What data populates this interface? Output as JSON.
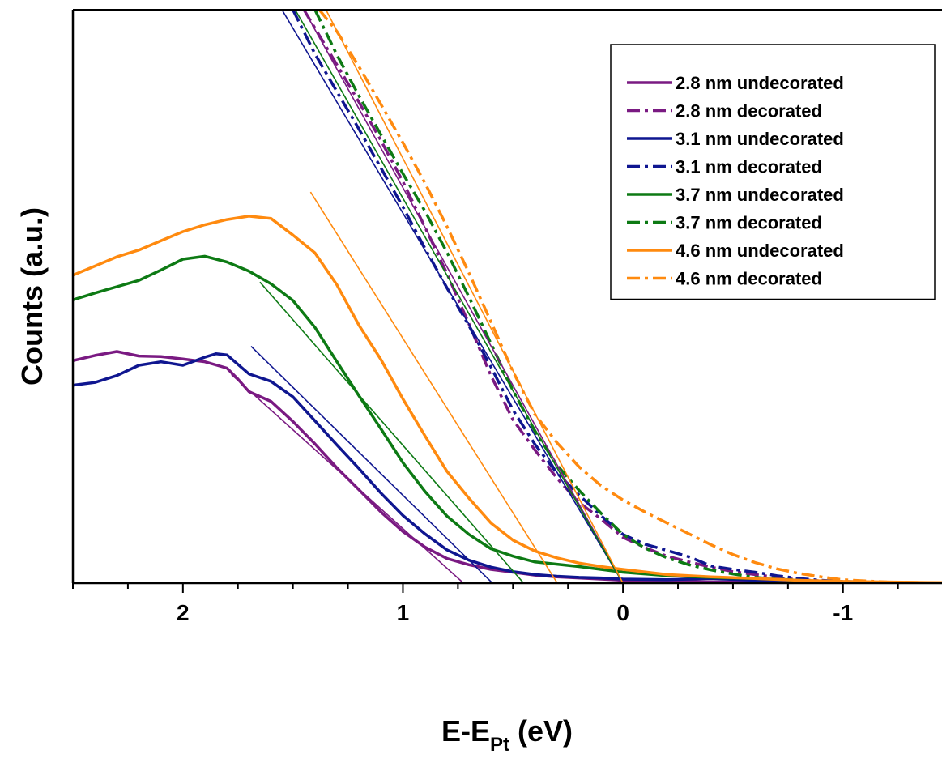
{
  "chart_data": {
    "type": "line",
    "xlabel": {
      "main": "E-E",
      "sub": "Pt",
      "unit": " (eV)"
    },
    "ylabel": "Counts (a.u.)",
    "xlim": [
      2.5,
      -1.45
    ],
    "ylim": [
      0,
      100
    ],
    "x_reversed": true,
    "xticks": [
      2,
      1,
      0,
      -1
    ],
    "xtick_labels": [
      "2",
      "1",
      "0",
      "-1"
    ],
    "y_tick_labels": false,
    "grid": false,
    "legend": {
      "position": "top-right",
      "frame": true
    },
    "colors": {
      "purple": "#7a1a82",
      "blue": "#0f1690",
      "green": "#0d7a14",
      "orange": "#ff8a0f"
    },
    "series": [
      {
        "name": "2.8 nm undecorated",
        "color": "#7a1a82",
        "style": "solid",
        "legend": true,
        "points": [
          [
            2.5,
            38.8
          ],
          [
            2.4,
            39.7
          ],
          [
            2.3,
            40.4
          ],
          [
            2.2,
            39.6
          ],
          [
            2.1,
            39.5
          ],
          [
            2.0,
            39.1
          ],
          [
            1.9,
            38.6
          ],
          [
            1.8,
            37.5
          ],
          [
            1.75,
            35.6
          ],
          [
            1.7,
            33.4
          ],
          [
            1.6,
            31.7
          ],
          [
            1.5,
            28.2
          ],
          [
            1.4,
            24.3
          ],
          [
            1.3,
            20.1
          ],
          [
            1.2,
            16.3
          ],
          [
            1.1,
            12.4
          ],
          [
            1.0,
            9.0
          ],
          [
            0.9,
            6.3
          ],
          [
            0.8,
            4.3
          ],
          [
            0.7,
            3.2
          ],
          [
            0.6,
            2.4
          ],
          [
            0.5,
            1.9
          ],
          [
            0.4,
            1.4
          ],
          [
            0.3,
            1.1
          ],
          [
            0.2,
            0.9
          ],
          [
            0.1,
            0.7
          ],
          [
            0.0,
            0.5
          ],
          [
            -0.2,
            0.3
          ],
          [
            -0.5,
            0.2
          ],
          [
            -1.0,
            0.1
          ],
          [
            -1.45,
            0.05
          ]
        ]
      },
      {
        "name": "2.8 nm decorated",
        "color": "#7a1a82",
        "style": "dashdot",
        "legend": true,
        "points": [
          [
            1.45,
            100
          ],
          [
            1.4,
            96.8
          ],
          [
            1.3,
            90.4
          ],
          [
            1.2,
            83.9
          ],
          [
            1.1,
            77.2
          ],
          [
            1.0,
            70.0
          ],
          [
            0.9,
            62.1
          ],
          [
            0.8,
            54.0
          ],
          [
            0.7,
            45.2
          ],
          [
            0.6,
            36.2
          ],
          [
            0.5,
            28.5
          ],
          [
            0.4,
            23.2
          ],
          [
            0.3,
            18.3
          ],
          [
            0.2,
            14.1
          ],
          [
            0.1,
            11.2
          ],
          [
            0.0,
            8.0
          ],
          [
            -0.1,
            6.2
          ],
          [
            -0.2,
            4.7
          ],
          [
            -0.3,
            3.7
          ],
          [
            -0.4,
            2.8
          ],
          [
            -0.5,
            2.0
          ],
          [
            -0.6,
            1.5
          ],
          [
            -0.7,
            1.0
          ],
          [
            -0.8,
            0.6
          ],
          [
            -0.9,
            0.4
          ],
          [
            -1.0,
            0.2
          ],
          [
            -1.2,
            0.1
          ],
          [
            -1.45,
            0.05
          ]
        ]
      },
      {
        "name": "3.1 nm undecorated",
        "color": "#0f1690",
        "style": "solid",
        "legend": true,
        "points": [
          [
            2.5,
            34.5
          ],
          [
            2.4,
            35.0
          ],
          [
            2.3,
            36.2
          ],
          [
            2.2,
            38.0
          ],
          [
            2.1,
            38.6
          ],
          [
            2.0,
            38.0
          ],
          [
            1.9,
            39.4
          ],
          [
            1.85,
            40.0
          ],
          [
            1.8,
            39.8
          ],
          [
            1.7,
            36.5
          ],
          [
            1.6,
            35.2
          ],
          [
            1.5,
            32.5
          ],
          [
            1.4,
            28.3
          ],
          [
            1.3,
            24.1
          ],
          [
            1.2,
            20.0
          ],
          [
            1.1,
            15.7
          ],
          [
            1.0,
            11.8
          ],
          [
            0.9,
            8.6
          ],
          [
            0.8,
            5.8
          ],
          [
            0.7,
            4.0
          ],
          [
            0.6,
            2.8
          ],
          [
            0.5,
            2.0
          ],
          [
            0.4,
            1.5
          ],
          [
            0.3,
            1.2
          ],
          [
            0.2,
            1.0
          ],
          [
            0.1,
            0.9
          ],
          [
            0.0,
            0.7
          ],
          [
            -0.2,
            0.6
          ],
          [
            -0.4,
            0.8
          ],
          [
            -0.6,
            0.5
          ],
          [
            -0.8,
            0.3
          ],
          [
            -1.0,
            0.2
          ],
          [
            -1.45,
            0.05
          ]
        ]
      },
      {
        "name": "3.1 nm decorated",
        "color": "#0f1690",
        "style": "dashdot",
        "legend": true,
        "points": [
          [
            1.5,
            100
          ],
          [
            1.4,
            92.3
          ],
          [
            1.3,
            85.7
          ],
          [
            1.2,
            79.2
          ],
          [
            1.1,
            72.4
          ],
          [
            1.0,
            65.6
          ],
          [
            0.9,
            58.4
          ],
          [
            0.8,
            51.5
          ],
          [
            0.7,
            44.9
          ],
          [
            0.6,
            37.7
          ],
          [
            0.5,
            30.2
          ],
          [
            0.4,
            24.2
          ],
          [
            0.3,
            19.2
          ],
          [
            0.2,
            15.4
          ],
          [
            0.1,
            11.8
          ],
          [
            0.0,
            8.5
          ],
          [
            -0.1,
            6.8
          ],
          [
            -0.2,
            5.7
          ],
          [
            -0.3,
            4.6
          ],
          [
            -0.4,
            3.0
          ],
          [
            -0.5,
            2.4
          ],
          [
            -0.6,
            1.9
          ],
          [
            -0.7,
            1.3
          ],
          [
            -0.8,
            0.8
          ],
          [
            -0.9,
            0.5
          ],
          [
            -1.0,
            0.3
          ],
          [
            -1.2,
            0.1
          ],
          [
            -1.45,
            0.05
          ]
        ]
      },
      {
        "name": "3.7 nm undecorated",
        "color": "#0d7a14",
        "style": "solid",
        "legend": true,
        "points": [
          [
            2.5,
            49.4
          ],
          [
            2.4,
            50.6
          ],
          [
            2.3,
            51.7
          ],
          [
            2.2,
            52.8
          ],
          [
            2.1,
            54.6
          ],
          [
            2.0,
            56.5
          ],
          [
            1.9,
            57.0
          ],
          [
            1.8,
            56.0
          ],
          [
            1.7,
            54.4
          ],
          [
            1.6,
            52.2
          ],
          [
            1.5,
            49.3
          ],
          [
            1.4,
            44.6
          ],
          [
            1.3,
            38.6
          ],
          [
            1.2,
            32.7
          ],
          [
            1.1,
            26.9
          ],
          [
            1.0,
            21.0
          ],
          [
            0.9,
            16.0
          ],
          [
            0.8,
            11.7
          ],
          [
            0.7,
            8.5
          ],
          [
            0.6,
            6.0
          ],
          [
            0.5,
            4.7
          ],
          [
            0.4,
            3.7
          ],
          [
            0.3,
            3.3
          ],
          [
            0.2,
            2.9
          ],
          [
            0.1,
            2.4
          ],
          [
            0.0,
            1.9
          ],
          [
            -0.2,
            1.3
          ],
          [
            -0.4,
            1.0
          ],
          [
            -0.6,
            0.8
          ],
          [
            -0.8,
            0.5
          ],
          [
            -1.0,
            0.2
          ],
          [
            -1.45,
            0.05
          ]
        ]
      },
      {
        "name": "3.7 nm decorated",
        "color": "#0d7a14",
        "style": "dashdot",
        "legend": true,
        "points": [
          [
            1.4,
            100
          ],
          [
            1.3,
            92.1
          ],
          [
            1.2,
            85.0
          ],
          [
            1.1,
            78.2
          ],
          [
            1.0,
            71.4
          ],
          [
            0.9,
            64.9
          ],
          [
            0.8,
            57.7
          ],
          [
            0.7,
            49.9
          ],
          [
            0.6,
            41.8
          ],
          [
            0.5,
            33.6
          ],
          [
            0.4,
            26.5
          ],
          [
            0.3,
            20.6
          ],
          [
            0.2,
            16.2
          ],
          [
            0.1,
            12.2
          ],
          [
            0.0,
            8.5
          ],
          [
            -0.1,
            6.1
          ],
          [
            -0.2,
            4.4
          ],
          [
            -0.3,
            3.2
          ],
          [
            -0.4,
            2.3
          ],
          [
            -0.5,
            1.6
          ],
          [
            -0.6,
            1.0
          ],
          [
            -0.7,
            0.7
          ],
          [
            -0.8,
            0.5
          ],
          [
            -0.9,
            0.3
          ],
          [
            -1.0,
            0.2
          ],
          [
            -1.2,
            0.1
          ],
          [
            -1.45,
            0.05
          ]
        ]
      },
      {
        "name": "4.6 nm undecorated",
        "color": "#ff8a0f",
        "style": "solid",
        "legend": true,
        "points": [
          [
            2.5,
            53.7
          ],
          [
            2.4,
            55.3
          ],
          [
            2.3,
            56.9
          ],
          [
            2.2,
            58.1
          ],
          [
            2.1,
            59.7
          ],
          [
            2.0,
            61.3
          ],
          [
            1.9,
            62.5
          ],
          [
            1.8,
            63.4
          ],
          [
            1.7,
            64.0
          ],
          [
            1.6,
            63.6
          ],
          [
            1.5,
            60.7
          ],
          [
            1.4,
            57.6
          ],
          [
            1.3,
            52.0
          ],
          [
            1.2,
            45.0
          ],
          [
            1.1,
            39.0
          ],
          [
            1.0,
            32.1
          ],
          [
            0.9,
            25.7
          ],
          [
            0.8,
            19.5
          ],
          [
            0.7,
            14.8
          ],
          [
            0.6,
            10.5
          ],
          [
            0.5,
            7.5
          ],
          [
            0.4,
            5.6
          ],
          [
            0.3,
            4.4
          ],
          [
            0.2,
            3.5
          ],
          [
            0.1,
            2.9
          ],
          [
            0.0,
            2.4
          ],
          [
            -0.2,
            1.5
          ],
          [
            -0.4,
            1.1
          ],
          [
            -0.6,
            0.8
          ],
          [
            -0.8,
            0.5
          ],
          [
            -1.0,
            0.3
          ],
          [
            -1.45,
            0.1
          ]
        ]
      },
      {
        "name": "4.6 nm decorated",
        "color": "#ff8a0f",
        "style": "dashdot",
        "legend": true,
        "points": [
          [
            1.38,
            100
          ],
          [
            1.3,
            96.2
          ],
          [
            1.2,
            90.1
          ],
          [
            1.1,
            83.5
          ],
          [
            1.0,
            76.8
          ],
          [
            0.9,
            69.8
          ],
          [
            0.8,
            62.2
          ],
          [
            0.7,
            54.1
          ],
          [
            0.6,
            45.6
          ],
          [
            0.5,
            36.9
          ],
          [
            0.4,
            29.4
          ],
          [
            0.3,
            24.5
          ],
          [
            0.2,
            20.3
          ],
          [
            0.1,
            17.0
          ],
          [
            0.0,
            14.5
          ],
          [
            -0.1,
            12.4
          ],
          [
            -0.2,
            10.5
          ],
          [
            -0.3,
            8.6
          ],
          [
            -0.4,
            6.7
          ],
          [
            -0.5,
            5.0
          ],
          [
            -0.6,
            3.6
          ],
          [
            -0.7,
            2.5
          ],
          [
            -0.8,
            1.7
          ],
          [
            -0.9,
            1.1
          ],
          [
            -1.0,
            0.6
          ],
          [
            -1.2,
            0.2
          ],
          [
            -1.45,
            0.05
          ]
        ]
      },
      {
        "name": "2.8 nm fit",
        "color": "#7a1a82",
        "style": "thin",
        "legend": false,
        "points": [
          [
            1.78,
            36.4
          ],
          [
            0.71,
            -0.5
          ]
        ]
      },
      {
        "name": "3.1 nm fit",
        "color": "#0f1690",
        "style": "thin",
        "legend": false,
        "points": [
          [
            1.69,
            41.3
          ],
          [
            0.58,
            -0.5
          ]
        ]
      },
      {
        "name": "3.7 nm fit",
        "color": "#0d7a14",
        "style": "thin",
        "legend": false,
        "points": [
          [
            1.65,
            52.5
          ],
          [
            0.44,
            -0.5
          ]
        ]
      },
      {
        "name": "4.6 nm fit",
        "color": "#ff8a0f",
        "style": "thin",
        "legend": false,
        "points": [
          [
            1.42,
            68.2
          ],
          [
            0.29,
            -0.5
          ]
        ]
      },
      {
        "name": "fit 2.8 nm decorated",
        "color": "#7a1a82",
        "style": "thin",
        "legend": false,
        "points": [
          [
            1.45,
            100
          ],
          [
            0.0,
            0.0
          ]
        ]
      },
      {
        "name": "fit 3.1 nm decorated",
        "color": "#0f1690",
        "style": "thin",
        "legend": false,
        "points": [
          [
            1.55,
            100
          ],
          [
            0.0,
            0.0
          ]
        ]
      },
      {
        "name": "fit 3.7 nm decorated",
        "color": "#0d7a14",
        "style": "thin",
        "legend": false,
        "points": [
          [
            1.49,
            100
          ],
          [
            0.0,
            0.0
          ]
        ]
      },
      {
        "name": "fit 4.6 nm decorated",
        "color": "#ff8a0f",
        "style": "thin",
        "legend": false,
        "points": [
          [
            1.35,
            100
          ],
          [
            0.0,
            0.0
          ]
        ]
      }
    ]
  }
}
